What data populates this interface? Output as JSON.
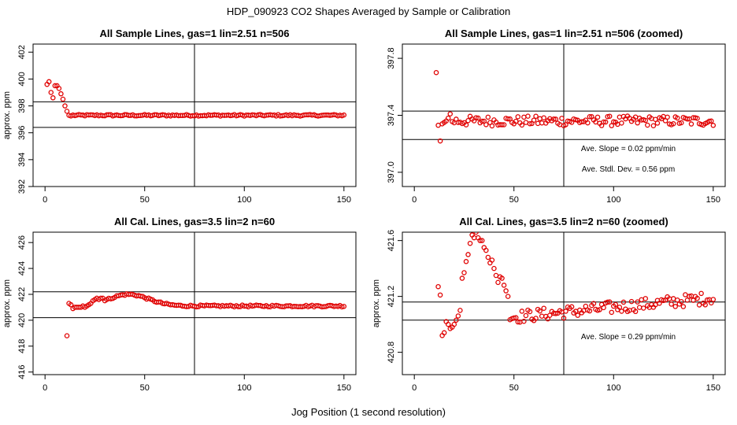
{
  "figure": {
    "title": "HDP_090923  CO2 Shapes Averaged by Sample or Calibration",
    "xlabel": "Jog Position (1 second resolution)"
  },
  "colors": {
    "points": "#e00000",
    "axes": "#000000",
    "background": "#ffffff"
  },
  "chart_data": [
    {
      "type": "scatter",
      "title": "All Sample Lines, gas=1 lin=2.51 n=506",
      "ylabel": "approx. ppm",
      "xlim": [
        0,
        150
      ],
      "ylim": [
        392,
        402.6
      ],
      "xticks": [
        0,
        50,
        100,
        150
      ],
      "yticks": [
        392,
        394,
        396,
        398,
        400,
        402
      ],
      "vline": 75,
      "hlines": [
        396.4,
        398.3
      ],
      "annotations": [],
      "series": [
        {
          "name": "sample lines",
          "segments": [
            {
              "x_start": 1,
              "values": [
                399.6,
                399.8,
                399.0,
                398.6,
                399.5,
                399.5,
                399.3,
                398.9,
                398.5,
                398.0,
                397.6,
                397.3,
                397.25
              ]
            },
            {
              "x_start": 14,
              "x_end": 150,
              "mean": 397.3,
              "jitter": 0.06
            }
          ]
        }
      ]
    },
    {
      "type": "scatter",
      "title": "All Sample Lines, gas=1 lin=2.51 n=506 (zoomed)",
      "ylabel": "",
      "xlim": [
        0,
        150
      ],
      "ylim": [
        396.9,
        397.9
      ],
      "xticks": [
        0,
        50,
        100,
        150
      ],
      "yticks": [
        397.0,
        397.4,
        397.8
      ],
      "ytick_labels": [
        "397.0",
        "397.4",
        "397.8"
      ],
      "vline": 75,
      "hlines": [
        397.23,
        397.43
      ],
      "annotations": [
        "Ave. Slope =  0.02  ppm/min",
        "Ave. Stdl. Dev. =  0.56  ppm"
      ],
      "series": [
        {
          "name": "sample lines",
          "segments": [
            {
              "x_start": 11,
              "values": [
                397.7,
                397.33,
                397.22,
                397.34,
                397.35,
                397.36,
                397.38,
                397.41
              ]
            },
            {
              "x_start": 19,
              "x_end": 150,
              "mean": 397.36,
              "jitter": 0.035
            }
          ]
        }
      ]
    },
    {
      "type": "scatter",
      "title": "All Cal. Lines, gas=3.5 lin=2 n=60",
      "ylabel": "approx. ppm",
      "xlim": [
        0,
        150
      ],
      "ylim": [
        415.8,
        426.8
      ],
      "xticks": [
        0,
        50,
        100,
        150
      ],
      "yticks": [
        416,
        418,
        420,
        422,
        424,
        426
      ],
      "vline": 75,
      "hlines": [
        420.2,
        422.2
      ],
      "annotations": [],
      "series": [
        {
          "name": "cal lines",
          "segments": [
            {
              "x_start": 11,
              "values": [
                418.8,
                421.3,
                421.2,
                420.9,
                421.0,
                421.0,
                421.0,
                421.0,
                421.1,
                421.0,
                421.1,
                421.2,
                421.3,
                421.5,
                421.6,
                421.7,
                421.6,
                421.7,
                421.7
              ]
            },
            {
              "x_start": 30,
              "x_end": 150,
              "curve": "bump",
              "base": 421.1,
              "peak": 422.0,
              "peak_x": 42,
              "width": 14,
              "jitter": 0.07
            }
          ]
        }
      ]
    },
    {
      "type": "scatter",
      "title": "All Cal. Lines, gas=3.5 lin=2 n=60 (zoomed)",
      "ylabel": "approx. ppm",
      "xlim": [
        0,
        150
      ],
      "ylim": [
        420.64,
        421.66
      ],
      "xticks": [
        0,
        50,
        100,
        150
      ],
      "yticks": [
        420.8,
        421.2,
        421.6
      ],
      "ytick_labels": [
        "420.8",
        "421.2",
        "421.6"
      ],
      "vline": 75,
      "hlines": [
        421.03,
        421.16
      ],
      "annotations": [
        "Ave. Slope =  0.29  ppm/min"
      ],
      "series": [
        {
          "name": "cal lines",
          "segments": [
            {
              "x_start": 12,
              "values": [
                421.27,
                421.21,
                420.92,
                420.94,
                421.02,
                421.0,
                420.97,
                420.98,
                421.0,
                421.03,
                421.06,
                421.1,
                421.33,
                421.37,
                421.45,
                421.5,
                421.58,
                421.64,
                421.62,
                421.66,
                421.62,
                421.6,
                421.6,
                421.55,
                421.53,
                421.48,
                421.44,
                421.46,
                421.4,
                421.35,
                421.3,
                421.34,
                421.33,
                421.28,
                421.24,
                421.2
              ]
            },
            {
              "x_start": 48,
              "x_end": 150,
              "curve": "linear",
              "from": 421.05,
              "to": 421.19,
              "jitter": 0.045
            }
          ]
        }
      ]
    }
  ]
}
